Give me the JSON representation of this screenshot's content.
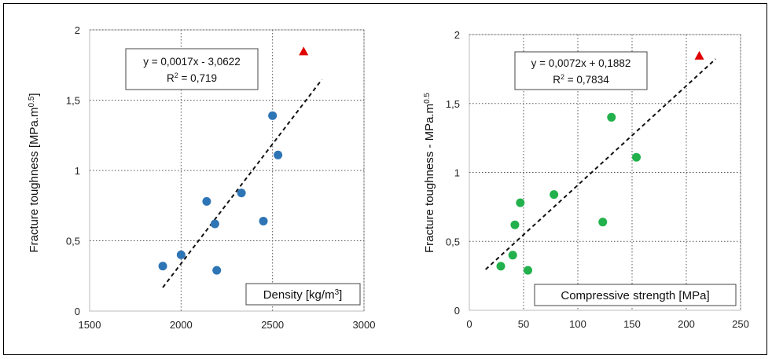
{
  "chart_data": [
    {
      "type": "scatter",
      "xlabel": "Density [kg/m",
      "xlabel_sup": "3",
      "xlabel_end": "]",
      "ylabel": "Fracture toughness [MPa.m",
      "ylabel_sup": "0.5",
      "ylabel_end": "]",
      "xlim": [
        1500,
        3000
      ],
      "ylim": [
        0,
        2
      ],
      "xticks": [
        1500,
        2000,
        2500,
        3000
      ],
      "yticks": [
        0,
        0.5,
        1,
        1.5,
        2
      ],
      "xtick_labels": [
        "1500",
        "2000",
        "2500",
        "3000"
      ],
      "ytick_labels": [
        "0",
        "0,5",
        "1",
        "1,5",
        "2"
      ],
      "grid": true,
      "series": [
        {
          "marker": "circle",
          "color": "#2e75b6",
          "x": [
            1900,
            2000,
            2140,
            2185,
            2195,
            2330,
            2450,
            2500,
            2530
          ],
          "y": [
            0.32,
            0.4,
            0.78,
            0.62,
            0.29,
            0.84,
            0.64,
            1.39,
            1.11
          ]
        },
        {
          "marker": "triangle",
          "color": "#e00000",
          "x": [
            2670
          ],
          "y": [
            1.85
          ]
        }
      ],
      "trendline": {
        "slope": 0.0017,
        "intercept": -3.0622,
        "x_range": [
          1900,
          2770
        ],
        "style": "dashed"
      },
      "equation": "y = 0,0017x - 3,0622",
      "r2_prefix": "R",
      "r2_sup": "2",
      "r2_value": " = 0,719"
    },
    {
      "type": "scatter",
      "xlabel": "Compressive strength [MPa]",
      "ylabel": "Fracture toughness - MPa.m",
      "ylabel_sup": "0.5",
      "xlim": [
        0,
        250
      ],
      "ylim": [
        0,
        2
      ],
      "xticks": [
        0,
        50,
        100,
        150,
        200,
        250
      ],
      "yticks": [
        0,
        0.5,
        1,
        1.5,
        2
      ],
      "xtick_labels": [
        "0",
        "50",
        "100",
        "150",
        "200",
        "250"
      ],
      "ytick_labels": [
        "0",
        "0,5",
        "1",
        "1,5",
        "2"
      ],
      "grid": true,
      "series": [
        {
          "marker": "circle",
          "color": "#22b14c",
          "x": [
            29,
            40,
            42,
            47,
            54,
            78,
            123,
            131,
            154
          ],
          "y": [
            0.32,
            0.4,
            0.62,
            0.78,
            0.29,
            0.84,
            0.64,
            1.4,
            1.11
          ]
        },
        {
          "marker": "triangle",
          "color": "#e00000",
          "x": [
            212
          ],
          "y": [
            1.85
          ]
        }
      ],
      "trendline": {
        "slope": 0.0072,
        "intercept": 0.1882,
        "x_range": [
          15,
          227
        ],
        "style": "dashed"
      },
      "equation": "y = 0,0072x + 0,1882",
      "r2_prefix": "R",
      "r2_sup": "2",
      "r2_value": " = 0,7834"
    }
  ]
}
